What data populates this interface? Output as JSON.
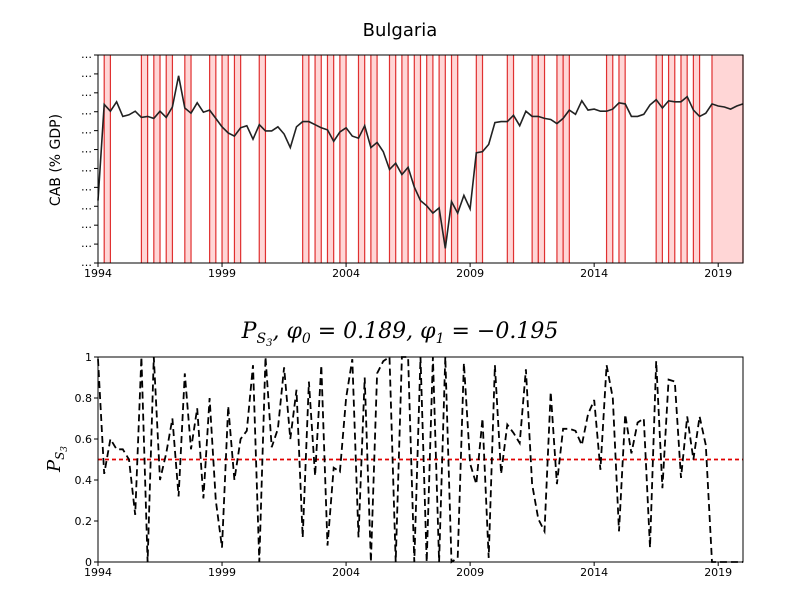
{
  "chart_data": [
    {
      "type": "line",
      "title": "Bulgaria",
      "ylabel": "CAB (% GDP)",
      "xlabel": "",
      "xlim": [
        1994,
        2020
      ],
      "ylim": [
        -30,
        10
      ],
      "x_ticks": [
        1994,
        1999,
        2004,
        2009,
        2014,
        2019
      ],
      "y_tick_labels": [
        "…",
        "…",
        "…",
        "…",
        "…",
        "…",
        "…",
        "…",
        "…",
        "…",
        "…",
        "…"
      ],
      "colors": {
        "line": "#222222",
        "band_fill": "#ffd6d6",
        "band_edge": "#e03030"
      },
      "series": [
        {
          "values": [
            [
              1994.0,
              -18.0
            ],
            [
              1994.25,
              0.5
            ],
            [
              1994.5,
              -0.8
            ],
            [
              1994.75,
              1.0
            ],
            [
              1995.0,
              -1.8
            ],
            [
              1995.25,
              -1.5
            ],
            [
              1995.5,
              -0.8
            ],
            [
              1995.75,
              -2.0
            ],
            [
              1996.0,
              -1.8
            ],
            [
              1996.25,
              -2.2
            ],
            [
              1996.5,
              -0.8
            ],
            [
              1996.75,
              -2.0
            ],
            [
              1997.0,
              0.0
            ],
            [
              1997.25,
              6.0
            ],
            [
              1997.5,
              -0.2
            ],
            [
              1997.75,
              -1.2
            ],
            [
              1998.0,
              0.8
            ],
            [
              1998.25,
              -1.0
            ],
            [
              1998.5,
              -0.6
            ],
            [
              1998.75,
              -2.2
            ],
            [
              1999.0,
              -3.8
            ],
            [
              1999.25,
              -5.0
            ],
            [
              1999.5,
              -5.6
            ],
            [
              1999.75,
              -4.0
            ],
            [
              2000.0,
              -3.6
            ],
            [
              2000.25,
              -6.2
            ],
            [
              2000.5,
              -3.4
            ],
            [
              2000.75,
              -4.6
            ],
            [
              2001.0,
              -4.6
            ],
            [
              2001.25,
              -3.8
            ],
            [
              2001.5,
              -5.2
            ],
            [
              2001.75,
              -7.8
            ],
            [
              2002.0,
              -3.8
            ],
            [
              2002.25,
              -2.8
            ],
            [
              2002.5,
              -2.8
            ],
            [
              2002.75,
              -3.4
            ],
            [
              2003.0,
              -4.0
            ],
            [
              2003.25,
              -4.4
            ],
            [
              2003.5,
              -6.6
            ],
            [
              2003.75,
              -4.8
            ],
            [
              2004.0,
              -4.0
            ],
            [
              2004.25,
              -5.6
            ],
            [
              2004.5,
              -6.0
            ],
            [
              2004.75,
              -3.6
            ],
            [
              2005.0,
              -7.8
            ],
            [
              2005.25,
              -6.8
            ],
            [
              2005.5,
              -8.6
            ],
            [
              2005.75,
              -12.0
            ],
            [
              2006.0,
              -10.8
            ],
            [
              2006.25,
              -13.0
            ],
            [
              2006.5,
              -11.6
            ],
            [
              2006.75,
              -15.4
            ],
            [
              2007.0,
              -18.0
            ],
            [
              2007.25,
              -19.0
            ],
            [
              2007.5,
              -20.4
            ],
            [
              2007.75,
              -19.4
            ],
            [
              2008.0,
              -27.2
            ],
            [
              2008.25,
              -18.2
            ],
            [
              2008.5,
              -20.4
            ],
            [
              2008.75,
              -17.0
            ],
            [
              2009.0,
              -19.6
            ],
            [
              2009.25,
              -8.8
            ],
            [
              2009.5,
              -8.6
            ],
            [
              2009.75,
              -7.2
            ],
            [
              2010.0,
              -3.0
            ],
            [
              2010.25,
              -2.8
            ],
            [
              2010.5,
              -2.8
            ],
            [
              2010.75,
              -1.6
            ],
            [
              2011.0,
              -3.6
            ],
            [
              2011.25,
              -0.8
            ],
            [
              2011.5,
              -1.8
            ],
            [
              2011.75,
              -1.8
            ],
            [
              2012.0,
              -2.2
            ],
            [
              2012.25,
              -2.4
            ],
            [
              2012.5,
              -3.2
            ],
            [
              2012.75,
              -2.2
            ],
            [
              2013.0,
              -0.6
            ],
            [
              2013.25,
              -1.4
            ],
            [
              2013.5,
              1.2
            ],
            [
              2013.75,
              -0.6
            ],
            [
              2014.0,
              -0.4
            ],
            [
              2014.25,
              -0.8
            ],
            [
              2014.5,
              -0.8
            ],
            [
              2014.75,
              -0.4
            ],
            [
              2015.0,
              0.8
            ],
            [
              2015.25,
              0.6
            ],
            [
              2015.5,
              -1.8
            ],
            [
              2015.75,
              -1.8
            ],
            [
              2016.0,
              -1.4
            ],
            [
              2016.25,
              0.4
            ],
            [
              2016.5,
              1.4
            ],
            [
              2016.75,
              -0.2
            ],
            [
              2017.0,
              1.2
            ],
            [
              2017.25,
              1.0
            ],
            [
              2017.5,
              1.0
            ],
            [
              2017.75,
              2.0
            ],
            [
              2018.0,
              -0.6
            ],
            [
              2018.25,
              -1.8
            ],
            [
              2018.5,
              -1.2
            ],
            [
              2018.75,
              0.6
            ],
            [
              2019.0,
              0.2
            ],
            [
              2019.25,
              0.0
            ],
            [
              2019.5,
              -0.4
            ],
            [
              2019.75,
              0.2
            ],
            [
              2020.0,
              0.6
            ]
          ]
        }
      ],
      "bands": [
        [
          1994.25,
          1994.5
        ],
        [
          1995.75,
          1996.0
        ],
        [
          1996.25,
          1996.5
        ],
        [
          1996.75,
          1997.0
        ],
        [
          1997.5,
          1997.75
        ],
        [
          1998.5,
          1998.75
        ],
        [
          1999.0,
          1999.25
        ],
        [
          1999.5,
          1999.75
        ],
        [
          2000.5,
          2000.75
        ],
        [
          2002.25,
          2002.5
        ],
        [
          2002.75,
          2003.0
        ],
        [
          2003.25,
          2003.5
        ],
        [
          2003.75,
          2004.0
        ],
        [
          2004.5,
          2004.75
        ],
        [
          2005.0,
          2005.25
        ],
        [
          2005.75,
          2006.0
        ],
        [
          2006.25,
          2006.5
        ],
        [
          2006.75,
          2007.0
        ],
        [
          2007.25,
          2007.5
        ],
        [
          2007.75,
          2008.0
        ],
        [
          2008.25,
          2008.5
        ],
        [
          2009.25,
          2009.5
        ],
        [
          2010.5,
          2010.75
        ],
        [
          2011.5,
          2011.75
        ],
        [
          2011.75,
          2012.0
        ],
        [
          2012.5,
          2012.75
        ],
        [
          2012.75,
          2013.0
        ],
        [
          2014.5,
          2014.75
        ],
        [
          2015.0,
          2015.25
        ],
        [
          2016.5,
          2016.75
        ],
        [
          2017.0,
          2017.25
        ],
        [
          2017.5,
          2017.75
        ],
        [
          2018.0,
          2018.25
        ],
        [
          2018.75,
          2020.0
        ]
      ]
    },
    {
      "type": "line",
      "title": "P_{S_3}, φ_0 = 0.189, φ_1 = −0.195",
      "title_parts": {
        "p": "P",
        "sub": "S",
        "subsub": "3",
        "rest": ", φ",
        "phi0_sub": "0",
        "phi0_val": " = 0.189, φ",
        "phi1_sub": "1",
        "phi1_val": " = −0.195"
      },
      "ylabel": "P_{S_3}",
      "ylabel_parts": {
        "p": "P",
        "sub": "S",
        "subsub": "3"
      },
      "xlabel": "",
      "xlim": [
        1994,
        2020
      ],
      "ylim": [
        0,
        1
      ],
      "x_ticks": [
        1994,
        1999,
        2004,
        2009,
        2014,
        2019
      ],
      "y_ticks": [
        0,
        0.2,
        0.4,
        0.6,
        0.8,
        1
      ],
      "y_tick_labels": [
        "0",
        "0.2",
        "0.4",
        "0.6",
        "0.8",
        "1"
      ],
      "reference_line": 0.5,
      "colors": {
        "line": "#000000",
        "reference": "#e00000"
      },
      "series": [
        {
          "values": [
            [
              1994.0,
              0.99
            ],
            [
              1994.25,
              0.43
            ],
            [
              1994.5,
              0.6
            ],
            [
              1994.75,
              0.55
            ],
            [
              1995.0,
              0.55
            ],
            [
              1995.25,
              0.5
            ],
            [
              1995.5,
              0.23
            ],
            [
              1995.75,
              1.0
            ],
            [
              1996.0,
              0.0
            ],
            [
              1996.25,
              1.0
            ],
            [
              1996.5,
              0.4
            ],
            [
              1996.75,
              0.53
            ],
            [
              1997.0,
              0.7
            ],
            [
              1997.25,
              0.32
            ],
            [
              1997.5,
              0.92
            ],
            [
              1997.75,
              0.55
            ],
            [
              1998.0,
              0.75
            ],
            [
              1998.25,
              0.31
            ],
            [
              1998.5,
              0.8
            ],
            [
              1998.75,
              0.3
            ],
            [
              1999.0,
              0.07
            ],
            [
              1999.25,
              0.76
            ],
            [
              1999.5,
              0.4
            ],
            [
              1999.75,
              0.6
            ],
            [
              2000.0,
              0.64
            ],
            [
              2000.25,
              0.96
            ],
            [
              2000.5,
              0.0
            ],
            [
              2000.75,
              1.0
            ],
            [
              2001.0,
              0.56
            ],
            [
              2001.25,
              0.65
            ],
            [
              2001.5,
              0.95
            ],
            [
              2001.75,
              0.6
            ],
            [
              2002.0,
              0.84
            ],
            [
              2002.25,
              0.12
            ],
            [
              2002.5,
              0.88
            ],
            [
              2002.75,
              0.42
            ],
            [
              2003.0,
              0.96
            ],
            [
              2003.25,
              0.08
            ],
            [
              2003.5,
              0.46
            ],
            [
              2003.75,
              0.44
            ],
            [
              2004.0,
              0.8
            ],
            [
              2004.25,
              0.99
            ],
            [
              2004.5,
              0.12
            ],
            [
              2004.75,
              0.9
            ],
            [
              2005.0,
              0.0
            ],
            [
              2005.25,
              0.92
            ],
            [
              2005.5,
              0.98
            ],
            [
              2005.75,
              1.0
            ],
            [
              2006.0,
              0.0
            ],
            [
              2006.25,
              1.0
            ],
            [
              2006.5,
              1.0
            ],
            [
              2006.75,
              0.0
            ],
            [
              2007.0,
              1.0
            ],
            [
              2007.25,
              0.0
            ],
            [
              2007.5,
              1.0
            ],
            [
              2007.75,
              0.0
            ],
            [
              2008.0,
              1.0
            ],
            [
              2008.25,
              0.0
            ],
            [
              2008.5,
              0.02
            ],
            [
              2008.75,
              0.97
            ],
            [
              2009.0,
              0.48
            ],
            [
              2009.25,
              0.38
            ],
            [
              2009.5,
              0.7
            ],
            [
              2009.75,
              0.02
            ],
            [
              2010.0,
              0.96
            ],
            [
              2010.25,
              0.43
            ],
            [
              2010.5,
              0.67
            ],
            [
              2010.75,
              0.63
            ],
            [
              2011.0,
              0.58
            ],
            [
              2011.25,
              0.94
            ],
            [
              2011.5,
              0.38
            ],
            [
              2011.75,
              0.21
            ],
            [
              2012.0,
              0.15
            ],
            [
              2012.25,
              0.83
            ],
            [
              2012.5,
              0.38
            ],
            [
              2012.75,
              0.65
            ],
            [
              2013.0,
              0.65
            ],
            [
              2013.25,
              0.64
            ],
            [
              2013.5,
              0.57
            ],
            [
              2013.75,
              0.72
            ],
            [
              2014.0,
              0.79
            ],
            [
              2014.25,
              0.45
            ],
            [
              2014.5,
              0.96
            ],
            [
              2014.75,
              0.8
            ],
            [
              2015.0,
              0.15
            ],
            [
              2015.25,
              0.72
            ],
            [
              2015.5,
              0.53
            ],
            [
              2015.75,
              0.68
            ],
            [
              2016.0,
              0.7
            ],
            [
              2016.25,
              0.07
            ],
            [
              2016.5,
              0.98
            ],
            [
              2016.75,
              0.36
            ],
            [
              2017.0,
              0.89
            ],
            [
              2017.25,
              0.88
            ],
            [
              2017.5,
              0.41
            ],
            [
              2017.75,
              0.71
            ],
            [
              2018.0,
              0.5
            ],
            [
              2018.25,
              0.71
            ],
            [
              2018.5,
              0.57
            ],
            [
              2018.75,
              0.0
            ],
            [
              2019.0,
              0.0
            ],
            [
              2019.25,
              0.0
            ],
            [
              2019.5,
              0.0
            ],
            [
              2019.75,
              0.0
            ],
            [
              2020.0,
              0.0
            ]
          ]
        }
      ]
    }
  ]
}
